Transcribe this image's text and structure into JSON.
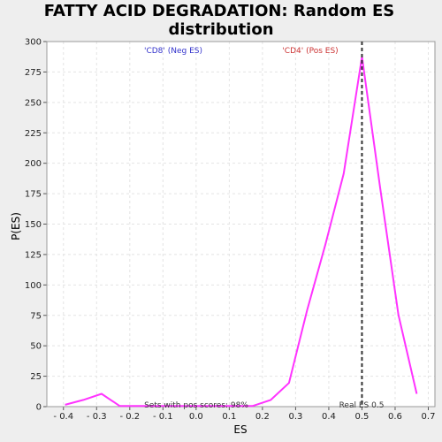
{
  "chart_data": {
    "type": "line",
    "title_line1": "FATTY ACID DEGRADATION: Random ES",
    "title_line2": "distribution",
    "xlabel": "ES",
    "ylabel": "P(ES)",
    "xlim": [
      -0.45,
      0.72
    ],
    "ylim": [
      0,
      300
    ],
    "xticks": [
      -0.4,
      -0.3,
      -0.2,
      -0.1,
      0.0,
      0.1,
      0.2,
      0.3,
      0.4,
      0.5,
      0.6,
      0.7
    ],
    "xtick_labels": [
      "- 0.4",
      "- 0.3",
      "- 0.2",
      "- 0.1",
      "0.0",
      "0.1",
      "0.2",
      "0.3",
      "0.4",
      "0.5",
      "0.6",
      "0.7"
    ],
    "yticks": [
      0,
      25,
      50,
      75,
      100,
      125,
      150,
      175,
      200,
      225,
      250,
      275,
      300
    ],
    "ytick_labels": [
      "0",
      "25",
      "50",
      "75",
      "100",
      "125",
      "150",
      "175",
      "200",
      "225",
      "250",
      "275",
      "300"
    ],
    "grid": true,
    "series": [
      {
        "color": "#ff33ff",
        "x": [
          -0.395,
          -0.34,
          -0.285,
          -0.23,
          -0.17,
          -0.11,
          -0.05,
          0.01,
          0.07,
          0.13,
          0.17,
          0.225,
          0.28,
          0.335,
          0.39,
          0.445,
          0.5,
          0.555,
          0.61,
          0.665
        ],
        "y": [
          1.5,
          5.5,
          10.5,
          0.5,
          0.5,
          0.5,
          0.5,
          0.5,
          0.5,
          0.5,
          0.5,
          5.5,
          19.5,
          79.5,
          133.5,
          191.5,
          287.5,
          179.5,
          75.5,
          10.5
        ]
      }
    ],
    "real_es": 0.5,
    "annotations": {
      "neg_label": "'CD8' (Neg ES)",
      "neg_color": "#3333cc",
      "pos_label": "'CD4' (Pos ES)",
      "pos_color": "#cc3333",
      "pos_scores": "Sets with pos scores: 98%",
      "real_es_label": "Real ES 0.5"
    },
    "colors": {
      "page_background": "#eeeeee",
      "plot_background": "#ffffff",
      "grid": "#e4e4e4",
      "real_es_line": "#333333"
    }
  }
}
